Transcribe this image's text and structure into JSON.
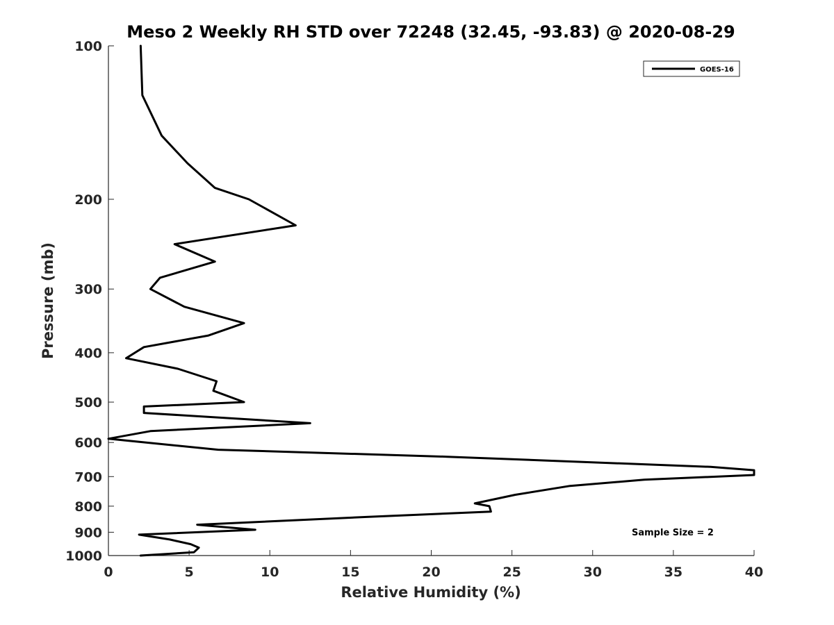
{
  "chart_data": {
    "type": "line",
    "title": "Meso 2 Weekly RH STD over 72248 (32.45, -93.83) @ 2020-08-29",
    "xlabel": "Relative Humidity (%)",
    "ylabel": "Pressure (mb)",
    "xlim": [
      0,
      40
    ],
    "ylim": [
      100,
      1000
    ],
    "y_scale": "log",
    "y_inverted": true,
    "xticks": [
      0,
      5,
      10,
      15,
      20,
      25,
      30,
      35,
      40
    ],
    "yticks": [
      100,
      200,
      300,
      400,
      500,
      600,
      700,
      800,
      900,
      1000
    ],
    "grid": false,
    "legend_position": "top-right",
    "annotation": "Sample Size = 2",
    "series": [
      {
        "name": "GOES-16",
        "color": "#000000",
        "x": [
          2.0,
          2.1,
          3.3,
          4.9,
          6.6,
          8.7,
          11.6,
          4.1,
          6.6,
          3.2,
          2.6,
          4.7,
          8.4,
          6.2,
          2.2,
          1.1,
          4.3,
          6.7,
          6.5,
          8.4,
          2.2,
          2.2,
          12.5,
          2.6,
          0.0,
          6.8,
          21.0,
          37.3,
          40.0,
          40.0,
          33.2,
          28.6,
          25.2,
          22.7,
          23.6,
          23.7,
          16.0,
          5.5,
          9.1,
          1.9,
          3.8,
          5.1,
          5.6,
          5.3,
          2.0
        ],
        "y": [
          100,
          125,
          150,
          170,
          190,
          200,
          225,
          245,
          265,
          285,
          300,
          325,
          350,
          370,
          390,
          410,
          430,
          455,
          475,
          500,
          510,
          525,
          550,
          570,
          590,
          620,
          640,
          670,
          680,
          695,
          710,
          730,
          760,
          790,
          800,
          820,
          840,
          870,
          890,
          910,
          930,
          950,
          965,
          985,
          1000
        ]
      }
    ]
  }
}
